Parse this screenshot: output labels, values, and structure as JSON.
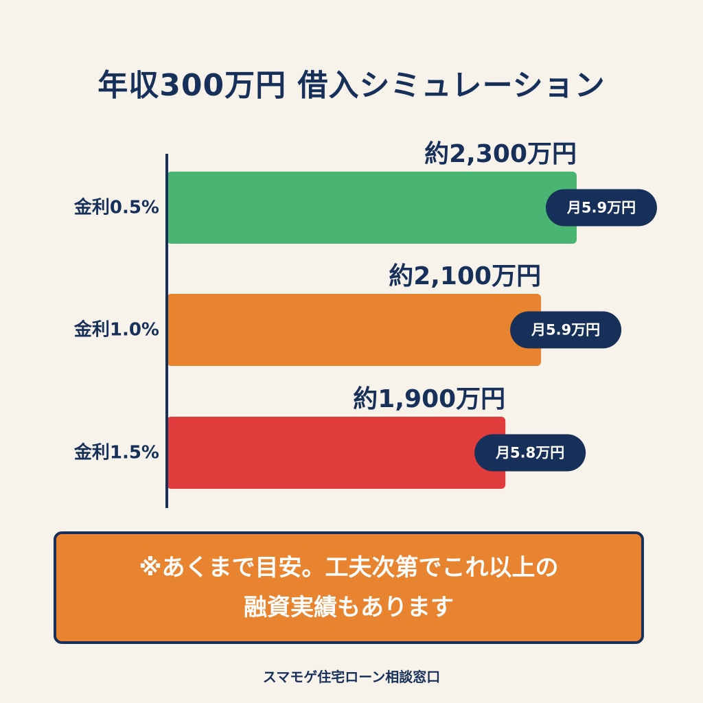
{
  "title": "年収300万円 借入シミュレーション",
  "colors": {
    "background": "#f8f3ea",
    "navy": "#16305a",
    "green": "#4ab573",
    "orange": "#e8842f",
    "red": "#e03c3b"
  },
  "chart_data": {
    "type": "bar",
    "orientation": "horizontal",
    "title": "年収300万円 借入シミュレーション",
    "categories": [
      "金利0.5%",
      "金利1.0%",
      "金利1.5%"
    ],
    "values": [
      2300,
      2100,
      1900
    ],
    "unit": "万円",
    "value_labels": [
      "約2,300万円",
      "約2,100万円",
      "約1,900万円"
    ],
    "monthly_labels": [
      "月5.9万円",
      "月5.9万円",
      "月5.8万円"
    ],
    "bar_colors": [
      "#4ab573",
      "#e8842f",
      "#e03c3b"
    ],
    "xlim": [
      0,
      2300
    ],
    "grid": false,
    "legend": "none"
  },
  "note": "※あくまで目安。工夫次第でこれ以上の融資実績もあります",
  "footer": "スマモゲ住宅ローン相談窓口"
}
